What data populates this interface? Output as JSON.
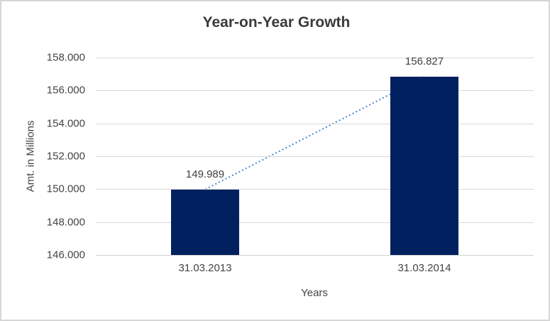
{
  "window": {
    "background": "#ffffff",
    "frame_border_color": "#d6d6d6"
  },
  "chart_data": {
    "type": "bar",
    "title": "Year-on-Year Growth",
    "xlabel": "Years",
    "ylabel": "Amt. in Millions",
    "categories": [
      "31.03.2013",
      "31.03.2014"
    ],
    "values": [
      149.989,
      156.827
    ],
    "value_labels": [
      "149.989",
      "156.827"
    ],
    "ylim": [
      146,
      158
    ],
    "yticks": [
      {
        "value": 146,
        "label": "146.000"
      },
      {
        "value": 148,
        "label": "148.000"
      },
      {
        "value": 150,
        "label": "150.000"
      },
      {
        "value": 152,
        "label": "152.000"
      },
      {
        "value": 154,
        "label": "154.000"
      },
      {
        "value": 156,
        "label": "156.000"
      },
      {
        "value": 158,
        "label": "158.000"
      }
    ],
    "grid": true,
    "legend": false,
    "bar_color": "#002060",
    "gridline_color": "#d9d9d9",
    "axis_line_color": "#cfcfcf",
    "tick_text_color": "#444444",
    "title_color": "#3a3a3a",
    "trendline": {
      "type": "linear",
      "style": "dotted",
      "color": "#4f86cc",
      "connects": "bar tops"
    }
  }
}
